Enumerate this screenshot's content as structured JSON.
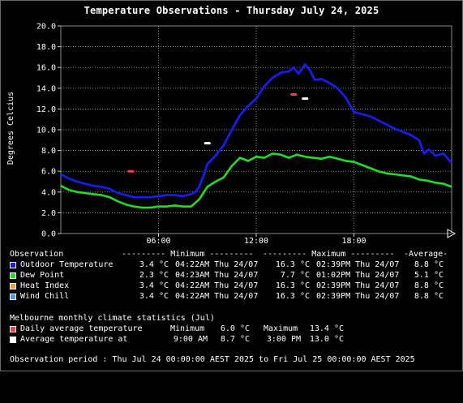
{
  "title": "Temperature Observations - Thursday July 24, 2025",
  "colors": {
    "plot_bg": "#000000",
    "grid": "#c8c8a0",
    "outdoor": "#1a1aff",
    "dew": "#22dd22",
    "heat": "#ff9933",
    "wind": "#4499ff",
    "daily_avg_marker": "#ff3b3b",
    "avg_at_marker": "#ffffff"
  },
  "chart_data": {
    "type": "line",
    "ylabel": "Degrees Celcius",
    "xlabel": "",
    "x_ticks": [
      "06:00",
      "12:00",
      "18:00"
    ],
    "x_tick_hours": [
      6,
      12,
      18
    ],
    "x_range_hours": [
      0,
      24
    ],
    "y_ticks": [
      "0.0",
      "2.0",
      "4.0",
      "6.0",
      "8.0",
      "10.0",
      "12.0",
      "14.0",
      "16.0",
      "18.0",
      "20.0"
    ],
    "ylim": [
      0,
      20
    ],
    "grid": true,
    "series": [
      {
        "name": "Outdoor Temperature",
        "color": "#1a1aff",
        "points": [
          [
            0,
            5.7
          ],
          [
            0.5,
            5.3
          ],
          [
            1,
            5.0
          ],
          [
            1.5,
            4.8
          ],
          [
            2,
            4.6
          ],
          [
            2.5,
            4.5
          ],
          [
            3,
            4.3
          ],
          [
            3.5,
            3.9
          ],
          [
            4,
            3.7
          ],
          [
            4.5,
            3.5
          ],
          [
            5,
            3.5
          ],
          [
            5.5,
            3.5
          ],
          [
            6,
            3.6
          ],
          [
            6.5,
            3.7
          ],
          [
            7,
            3.7
          ],
          [
            7.5,
            3.6
          ],
          [
            8,
            3.8
          ],
          [
            8.25,
            4.0
          ],
          [
            8.5,
            4.5
          ],
          [
            8.75,
            5.5
          ],
          [
            9,
            6.7
          ],
          [
            9.5,
            7.5
          ],
          [
            10,
            8.5
          ],
          [
            10.5,
            10.0
          ],
          [
            11,
            11.4
          ],
          [
            11.5,
            12.3
          ],
          [
            12,
            13.0
          ],
          [
            12.5,
            14.2
          ],
          [
            13,
            15.0
          ],
          [
            13.5,
            15.5
          ],
          [
            14,
            15.6
          ],
          [
            14.3,
            16.0
          ],
          [
            14.6,
            15.4
          ],
          [
            15,
            16.3
          ],
          [
            15.3,
            15.7
          ],
          [
            15.6,
            14.8
          ],
          [
            16,
            14.9
          ],
          [
            16.5,
            14.5
          ],
          [
            17,
            14.0
          ],
          [
            17.5,
            13.1
          ],
          [
            18,
            11.7
          ],
          [
            18.5,
            11.5
          ],
          [
            19,
            11.3
          ],
          [
            19.5,
            10.9
          ],
          [
            20,
            10.5
          ],
          [
            20.5,
            10.1
          ],
          [
            21,
            9.8
          ],
          [
            21.5,
            9.5
          ],
          [
            22,
            9.0
          ],
          [
            22.3,
            7.7
          ],
          [
            22.6,
            8.1
          ],
          [
            23,
            7.5
          ],
          [
            23.5,
            7.7
          ],
          [
            24,
            6.8
          ]
        ]
      },
      {
        "name": "Dew Point",
        "color": "#22dd22",
        "points": [
          [
            0,
            4.6
          ],
          [
            0.5,
            4.2
          ],
          [
            1,
            4.0
          ],
          [
            1.5,
            3.9
          ],
          [
            2,
            3.8
          ],
          [
            2.5,
            3.7
          ],
          [
            3,
            3.5
          ],
          [
            3.5,
            3.1
          ],
          [
            4,
            2.8
          ],
          [
            4.5,
            2.6
          ],
          [
            5,
            2.5
          ],
          [
            5.5,
            2.5
          ],
          [
            6,
            2.6
          ],
          [
            6.5,
            2.6
          ],
          [
            7,
            2.7
          ],
          [
            7.5,
            2.6
          ],
          [
            8,
            2.6
          ],
          [
            8.5,
            3.3
          ],
          [
            9,
            4.5
          ],
          [
            9.5,
            5.0
          ],
          [
            10,
            5.4
          ],
          [
            10.5,
            6.5
          ],
          [
            11,
            7.3
          ],
          [
            11.5,
            7.0
          ],
          [
            12,
            7.4
          ],
          [
            12.5,
            7.3
          ],
          [
            13,
            7.7
          ],
          [
            13.5,
            7.6
          ],
          [
            14,
            7.3
          ],
          [
            14.5,
            7.6
          ],
          [
            15,
            7.4
          ],
          [
            15.5,
            7.3
          ],
          [
            16,
            7.2
          ],
          [
            16.5,
            7.4
          ],
          [
            17,
            7.2
          ],
          [
            17.5,
            7.0
          ],
          [
            18,
            6.9
          ],
          [
            18.5,
            6.6
          ],
          [
            19,
            6.3
          ],
          [
            19.5,
            6.0
          ],
          [
            20,
            5.8
          ],
          [
            20.5,
            5.7
          ],
          [
            21,
            5.6
          ],
          [
            21.5,
            5.5
          ],
          [
            22,
            5.2
          ],
          [
            22.5,
            5.1
          ],
          [
            23,
            4.9
          ],
          [
            23.5,
            4.8
          ],
          [
            24,
            4.5
          ]
        ]
      }
    ],
    "markers": [
      {
        "name": "Daily average temperature",
        "color": "#ff3b3b",
        "points": [
          [
            4.3,
            6.0
          ],
          [
            14.3,
            13.4
          ]
        ]
      },
      {
        "name": "Average temperature at",
        "color": "#ffffff",
        "points": [
          [
            9.0,
            8.7
          ],
          [
            15.0,
            13.0
          ]
        ]
      }
    ]
  },
  "table": {
    "header": {
      "observation": "Observation",
      "minimum": "--------- Minimum ---------",
      "maximum": "--------- Maximum ---------",
      "average": "-Average-"
    },
    "rows": [
      {
        "label": "Outdoor Temperature",
        "color": "#1a1aff",
        "min": "3.4 °C",
        "min_time": "04:22AM Thu 24/07",
        "max": "16.3 °C",
        "max_time": "02:39PM Thu 24/07",
        "avg": "8.8 °C"
      },
      {
        "label": "Dew Point",
        "color": "#22dd22",
        "min": "2.3 °C",
        "min_time": "04:23AM Thu 24/07",
        "max": "7.7 °C",
        "max_time": "01:02PM Thu 24/07",
        "avg": "5.1 °C"
      },
      {
        "label": "Heat Index",
        "color": "#ff9933",
        "min": "3.4 °C",
        "min_time": "04:22AM Thu 24/07",
        "max": "16.3 °C",
        "max_time": "02:39PM Thu 24/07",
        "avg": "8.8 °C"
      },
      {
        "label": "Wind Chill",
        "color": "#4499ff",
        "min": "3.4 °C",
        "min_time": "04:22AM Thu 24/07",
        "max": "16.3 °C",
        "max_time": "02:39PM Thu 24/07",
        "avg": "8.8 °C"
      }
    ]
  },
  "climate": {
    "heading": "Melbourne monthly climate statistics (Jul)",
    "daily": {
      "label": "Daily average temperature",
      "min_label": "Minimum",
      "min": "6.0 °C",
      "max_label": "Maximum",
      "max": "13.4 °C"
    },
    "avg_at": {
      "label": "Average temperature at",
      "t1": "9:00 AM",
      "v1": "8.7 °C",
      "t2": "3:00 PM",
      "v2": "13.0 °C"
    }
  },
  "period": "Observation period : Thu Jul 24 00:00:00 AEST 2025 to Fri Jul 25 00:00:00 AEST 2025"
}
